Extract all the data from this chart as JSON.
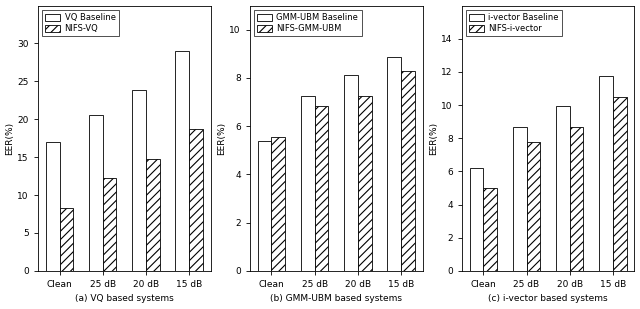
{
  "subplots": [
    {
      "title": "(a) VQ based systems",
      "ylabel": "EER(%)",
      "categories": [
        "Clean",
        "25 dB",
        "20 dB",
        "15 dB"
      ],
      "baseline_label": "VQ Baseline",
      "nifs_label": "NIFS-VQ",
      "baseline_values": [
        17.0,
        20.5,
        23.8,
        29.0
      ],
      "nifs_values": [
        8.3,
        12.3,
        14.7,
        18.7
      ],
      "ylim": [
        0,
        35
      ],
      "yticks": [
        0,
        5,
        10,
        15,
        20,
        25,
        30
      ]
    },
    {
      "title": "(b) GMM-UBM based systems",
      "ylabel": "EER(%)",
      "categories": [
        "Clean",
        "25 dB",
        "20 dB",
        "15 dB"
      ],
      "baseline_label": "GMM-UBM Baseline",
      "nifs_label": "NIFS-GMM-UBM",
      "baseline_values": [
        5.4,
        7.25,
        8.1,
        8.85
      ],
      "nifs_values": [
        5.55,
        6.85,
        7.25,
        8.3
      ],
      "ylim": [
        0,
        11
      ],
      "yticks": [
        0,
        2,
        4,
        6,
        8,
        10
      ]
    },
    {
      "title": "(c) i-vector based systems",
      "ylabel": "EER(%)",
      "categories": [
        "Clean",
        "25 dB",
        "20 dB",
        "15 dB"
      ],
      "baseline_label": "i-vector Baseline",
      "nifs_label": "NIFS-i-vector",
      "baseline_values": [
        6.2,
        8.65,
        9.95,
        11.75
      ],
      "nifs_values": [
        5.0,
        7.8,
        8.7,
        10.5
      ],
      "ylim": [
        0,
        16
      ],
      "yticks": [
        0,
        2,
        4,
        6,
        8,
        10,
        12,
        14
      ]
    }
  ],
  "bar_width": 0.32,
  "baseline_color": "#ffffff",
  "edge_color": "#000000",
  "hatch_pattern": "////",
  "figure_width": 6.4,
  "figure_height": 3.09,
  "dpi": 100,
  "font_size": 6.5,
  "title_font_size": 6.5,
  "legend_font_size": 6.0,
  "tick_font_size": 6.5
}
